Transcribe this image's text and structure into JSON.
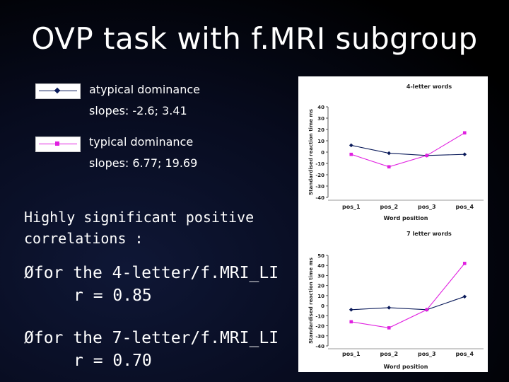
{
  "slide": {
    "title": "OVP task with f.MRI subgroup",
    "legend": [
      {
        "line1": "atypical dominance",
        "line2": "slopes: -2.6; 3.41",
        "color": "#0a1a5a"
      },
      {
        "line1": "typical dominance",
        "line2": "slopes: 6.77; 19.69",
        "color": "#e020e0"
      }
    ],
    "heading_line1": "Highly significant positive",
    "heading_line2": "correlations :",
    "bullet_symbol": "Ø",
    "bullet1_text": "for the 4-letter/f.MRI_LI",
    "bullet1_r": "r = 0.85",
    "bullet2_text": "for the 7-letter/f.MRI_LI",
    "bullet2_r": "r = 0.70"
  },
  "chart_data": [
    {
      "type": "line",
      "title": "4-letter words",
      "xlabel": "Word position",
      "ylabel": "Standardised reaction time ms",
      "categories": [
        "pos_1",
        "pos_2",
        "pos_3",
        "pos_4"
      ],
      "ylim": [
        -40,
        40
      ],
      "yticks": [
        40,
        30,
        20,
        10,
        0,
        -10,
        -20,
        -30,
        -40
      ],
      "grid": false,
      "series": [
        {
          "values": [
            6,
            -1,
            -3,
            -2
          ],
          "color": "#0a1a5a",
          "marker": "diamond"
        },
        {
          "values": [
            -2,
            -13,
            -3,
            17
          ],
          "color": "#e020e0",
          "marker": "square"
        }
      ]
    },
    {
      "type": "line",
      "title": "7 letter words",
      "xlabel": "Word position",
      "ylabel": "Standardised reaction time ms",
      "categories": [
        "pos_1",
        "pos_2",
        "pos_3",
        "pos_4"
      ],
      "ylim": [
        -40,
        50
      ],
      "yticks": [
        50,
        40,
        30,
        20,
        10,
        0,
        -10,
        -20,
        -30,
        -40
      ],
      "grid": false,
      "series": [
        {
          "values": [
            -4,
            -2,
            -4,
            9
          ],
          "color": "#0a1a5a",
          "marker": "diamond"
        },
        {
          "values": [
            -16,
            -22,
            -4,
            42
          ],
          "color": "#e020e0",
          "marker": "square"
        }
      ]
    }
  ]
}
